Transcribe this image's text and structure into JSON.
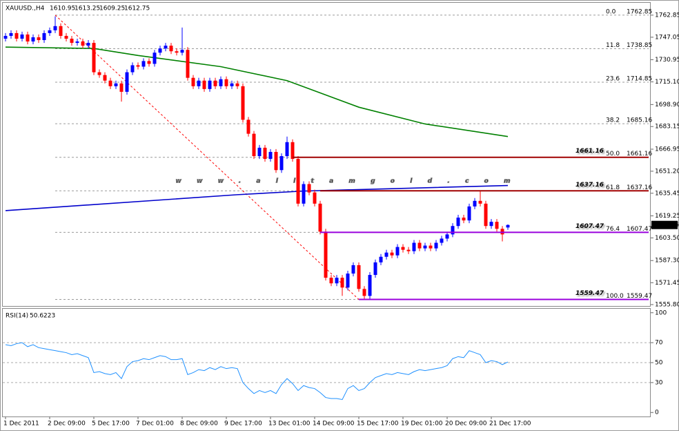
{
  "chart_data": [
    {
      "type": "candlestick",
      "title": "XAUUSD.,H4",
      "categories": [
        "1 Dec 2011",
        null,
        null,
        null,
        null,
        null,
        null,
        null,
        "2 Dec 09:00",
        null,
        null,
        null,
        null,
        null,
        null,
        null,
        "5 Dec 17:00",
        null,
        null,
        null,
        null,
        null,
        null,
        null,
        "7 Dec 01:00",
        null,
        null,
        null,
        null,
        null,
        null,
        null,
        "8 Dec 09:00",
        null,
        null,
        null,
        null,
        null,
        null,
        null,
        "9 Dec 17:00",
        null,
        null,
        null,
        null,
        null,
        null,
        null,
        "13 Dec 01:00",
        null,
        null,
        null,
        null,
        null,
        null,
        null,
        "14 Dec 09:00",
        null,
        null,
        null,
        null,
        null,
        null,
        null,
        "15 Dec 17:00",
        null,
        null,
        null,
        null,
        null,
        null,
        null,
        "19 Dec 01:00",
        null,
        null,
        null,
        null,
        null,
        null,
        null,
        "20 Dec 09:00",
        null,
        null,
        null,
        null,
        null,
        null,
        null,
        "21 Dec 17:00",
        null,
        null,
        null
      ],
      "open": [
        1746,
        1748,
        1750,
        1746,
        1749,
        1744,
        1747,
        1745,
        1750,
        1752,
        1755,
        1748,
        1746,
        1743,
        1744,
        1741,
        1743,
        1722,
        1720,
        1716,
        1712,
        1714,
        1708,
        1722,
        1727,
        1726,
        1730,
        1728,
        1736,
        1739,
        1741,
        1737,
        1736,
        1738,
        1718,
        1712,
        1716,
        1710,
        1716,
        1712,
        1717,
        1712,
        1714,
        1712,
        1688,
        1678,
        1662,
        1668,
        1660,
        1665,
        1652,
        1662,
        1672,
        1660,
        1628,
        1642,
        1636,
        1628,
        1608,
        1575,
        1571,
        1575,
        1568,
        1578,
        1584,
        1567,
        1562,
        1577,
        1586,
        1590,
        1593,
        1591,
        1597,
        1595,
        1594,
        1600,
        1596,
        1598,
        1596,
        1600,
        1603,
        1606,
        1612,
        1618,
        1616,
        1626,
        1630,
        1628,
        1612,
        1615,
        1610,
        1610.95
      ],
      "high": [
        1750,
        1752,
        1752,
        1751,
        1751,
        1749,
        1749,
        1752,
        1754,
        1762,
        1757,
        1750,
        1748,
        1746,
        1746,
        1745,
        1745,
        1724,
        1722,
        1718,
        1716,
        1716,
        1724,
        1729,
        1729,
        1732,
        1732,
        1738,
        1741,
        1743,
        1743,
        1739,
        1754,
        1740,
        1720,
        1718,
        1718,
        1718,
        1718,
        1719,
        1719,
        1716,
        1716,
        1714,
        1690,
        1680,
        1670,
        1670,
        1667,
        1667,
        1664,
        1676,
        1674,
        1662,
        1644,
        1644,
        1638,
        1630,
        1610,
        1577,
        1577,
        1577,
        1580,
        1586,
        1586,
        1569,
        1579,
        1588,
        1592,
        1595,
        1595,
        1599,
        1599,
        1597,
        1602,
        1602,
        1600,
        1600,
        1602,
        1605,
        1608,
        1614,
        1620,
        1620,
        1628,
        1632,
        1637,
        1630,
        1617,
        1617,
        1612,
        1613.25
      ],
      "low": [
        1744,
        1746,
        1744,
        1744,
        1742,
        1742,
        1743,
        1743,
        1748,
        1750,
        1746,
        1744,
        1741,
        1741,
        1739,
        1739,
        1720,
        1718,
        1714,
        1710,
        1710,
        1701,
        1706,
        1720,
        1724,
        1724,
        1726,
        1726,
        1734,
        1737,
        1735,
        1734,
        1734,
        1716,
        1710,
        1710,
        1708,
        1708,
        1710,
        1710,
        1710,
        1710,
        1710,
        1686,
        1676,
        1660,
        1660,
        1658,
        1658,
        1650,
        1650,
        1660,
        1658,
        1626,
        1626,
        1634,
        1626,
        1606,
        1573,
        1569,
        1569,
        1562,
        1566,
        1576,
        1565,
        1559.47,
        1560,
        1575,
        1584,
        1588,
        1589,
        1589,
        1593,
        1592,
        1592,
        1594,
        1594,
        1594,
        1594,
        1598,
        1601,
        1604,
        1610,
        1614,
        1614,
        1624,
        1626,
        1610,
        1610,
        1608,
        1601,
        1609.25
      ],
      "close": [
        1748,
        1750,
        1746,
        1749,
        1744,
        1747,
        1745,
        1750,
        1752,
        1755,
        1748,
        1746,
        1743,
        1744,
        1741,
        1743,
        1722,
        1720,
        1716,
        1712,
        1714,
        1708,
        1722,
        1727,
        1726,
        1730,
        1728,
        1736,
        1739,
        1741,
        1737,
        1736,
        1738,
        1718,
        1712,
        1716,
        1710,
        1716,
        1712,
        1717,
        1712,
        1714,
        1712,
        1688,
        1678,
        1662,
        1668,
        1660,
        1665,
        1652,
        1662,
        1672,
        1660,
        1628,
        1642,
        1636,
        1628,
        1608,
        1575,
        1571,
        1575,
        1568,
        1578,
        1584,
        1567,
        1562,
        1577,
        1586,
        1590,
        1593,
        1591,
        1597,
        1595,
        1594,
        1600,
        1596,
        1598,
        1596,
        1600,
        1603,
        1606,
        1612,
        1618,
        1616,
        1626,
        1630,
        1628,
        1612,
        1615,
        1610,
        1606,
        1612.75
      ],
      "up_color": "#0000ff",
      "down_color": "#ff0000",
      "ylim": [
        1554.8,
        1771.2
      ],
      "yticks": [
        1762.85,
        1747.05,
        1730.95,
        {
          "value": 1715.1,
          "label": "1715.10"
        },
        {
          "value": 1698.9,
          "label": "1698.90"
        },
        1683.15,
        1666.95,
        {
          "value": 1651.2,
          "label": "1651.20"
        },
        1635.45,
        1619.25,
        {
          "value": 1603.5,
          "label": "1603.50"
        },
        {
          "value": 1587.3,
          "label": "1587.30"
        },
        1571.45,
        {
          "value": 1555.8,
          "label": "1555.80"
        }
      ],
      "moving_averages": [
        {
          "color": "#008000",
          "index": [
            0,
            16,
            24,
            39,
            51,
            64,
            76,
            91
          ],
          "values": [
            1740,
            1739,
            1734,
            1726,
            1716,
            1697,
            1685,
            1676
          ]
        },
        {
          "color": "#0000cc",
          "index": [
            0,
            42,
            54,
            91
          ],
          "values": [
            1623,
            1634.4,
            1637,
            1641
          ]
        }
      ],
      "fib_levels": [
        {
          "label": "0.0",
          "value": 1762.85
        },
        {
          "label": "11.8",
          "value": 1738.85
        },
        {
          "label": "23.6",
          "value": 1714.85
        },
        {
          "label": "38.2",
          "value": 1685.16
        },
        {
          "label": "50.0",
          "value": 1661.16
        },
        {
          "label": "61.8",
          "value": 1637.16
        },
        {
          "label": "76.4",
          "value": 1607.47
        },
        {
          "label": "100.0",
          "value": 1559.47
        }
      ],
      "fib_color": "#ff0000",
      "levels": [
        {
          "value": 1661.16,
          "color": "#a00000"
        },
        {
          "value": 1637.16,
          "color": "#a00000"
        },
        {
          "value": 1607.47,
          "color": "#9900dd"
        },
        {
          "value": 1559.47,
          "color": "#9900dd"
        }
      ],
      "watermark": "www.alltamgold.com"
    },
    {
      "type": "line",
      "title": "RSI(14)",
      "color": "#1e90ff",
      "values": [
        68,
        67,
        69,
        70,
        66,
        68,
        65,
        64,
        63,
        62,
        61,
        60,
        58,
        59,
        57,
        55,
        40,
        41,
        39,
        38,
        40,
        34,
        46,
        51,
        52,
        54,
        53,
        55,
        57,
        56,
        53,
        53,
        54,
        38,
        40,
        43,
        42,
        45,
        43,
        46,
        44,
        45,
        44,
        30,
        24,
        19,
        22,
        20,
        22,
        19,
        28,
        34,
        29,
        22,
        27,
        25,
        24,
        20,
        15,
        14,
        14,
        13,
        24,
        27,
        22,
        24,
        30,
        35,
        37,
        39,
        38,
        40,
        39,
        38,
        41,
        43,
        42,
        43,
        44,
        45,
        47,
        54,
        56,
        55,
        62,
        60,
        58,
        50,
        52,
        51,
        48,
        50.6223
      ],
      "ylim": [
        -4,
        104
      ],
      "yticks": [
        100,
        70,
        50,
        30,
        0
      ]
    }
  ]
}
